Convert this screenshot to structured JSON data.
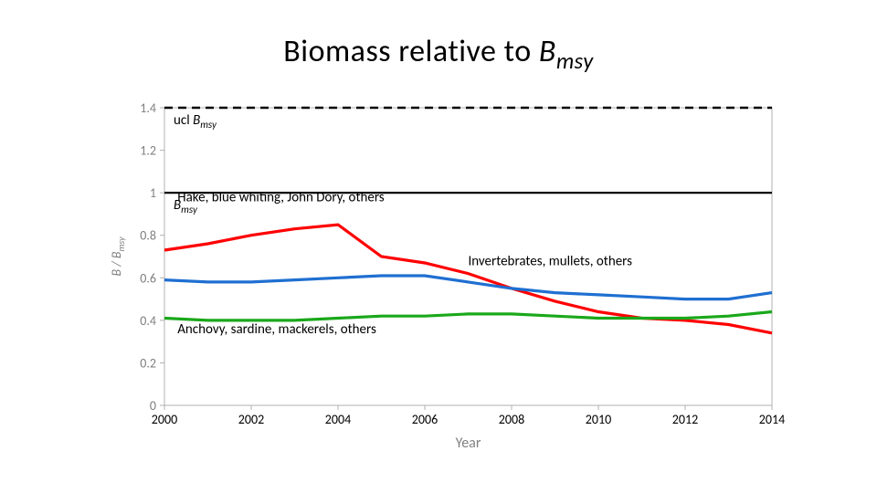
{
  "title": {
    "main": "Biomass relative to ",
    "italic": "B",
    "sub": "msy",
    "fontsize": 34,
    "color": "#000000"
  },
  "chart": {
    "type": "line",
    "background_color": "#ffffff",
    "axis_color": "#b0b0b0",
    "x": {
      "label": "Year",
      "label_color": "#808080",
      "label_fontsize": 16,
      "lim": [
        2000,
        2014
      ],
      "ticks": [
        2000,
        2002,
        2004,
        2006,
        2008,
        2010,
        2012,
        2014
      ],
      "tick_color": "#000000",
      "tick_fontsize": 14
    },
    "y": {
      "label": "B / B_msy",
      "label_color": "#808080",
      "label_fontsize": 14,
      "lim": [
        0,
        1.4
      ],
      "ticks": [
        0,
        0.2,
        0.4,
        0.6,
        0.8,
        1,
        1.2,
        1.4
      ],
      "tick_color": "#808080",
      "tick_fontsize": 14
    },
    "reference_lines": [
      {
        "y": 1.4,
        "style": "dashed",
        "color": "#000000",
        "width": 2.6,
        "dash": "9 6",
        "label_prefix": "ucl ",
        "label_italic": "B",
        "label_sub": "msy"
      },
      {
        "y": 1.0,
        "style": "solid",
        "color": "#000000",
        "width": 2.2,
        "label_prefix": "",
        "label_italic": "B",
        "label_sub": "msy"
      }
    ],
    "series": [
      {
        "name": "Hake, blue whiting, John Dory, others",
        "color": "#ff0000",
        "width": 3.2,
        "label_xy": [
          2000.3,
          0.96
        ],
        "x": [
          2000,
          2001,
          2002,
          2003,
          2004,
          2005,
          2006,
          2007,
          2008,
          2009,
          2010,
          2011,
          2012,
          2013,
          2014
        ],
        "y": [
          0.73,
          0.76,
          0.8,
          0.83,
          0.85,
          0.7,
          0.67,
          0.62,
          0.55,
          0.49,
          0.44,
          0.41,
          0.4,
          0.38,
          0.34
        ]
      },
      {
        "name": "Invertebrates, mullets, others",
        "color": "#1f6fd1",
        "width": 3.2,
        "label_xy": [
          2007.0,
          0.66
        ],
        "x": [
          2000,
          2001,
          2002,
          2003,
          2004,
          2005,
          2006,
          2007,
          2008,
          2009,
          2010,
          2011,
          2012,
          2013,
          2014
        ],
        "y": [
          0.59,
          0.58,
          0.58,
          0.59,
          0.6,
          0.61,
          0.61,
          0.58,
          0.55,
          0.53,
          0.52,
          0.51,
          0.5,
          0.5,
          0.53
        ]
      },
      {
        "name": "Anchovy, sardine, mackerels, others",
        "color": "#1aa81a",
        "width": 3.2,
        "label_xy": [
          2000.3,
          0.34
        ],
        "x": [
          2000,
          2001,
          2002,
          2003,
          2004,
          2005,
          2006,
          2007,
          2008,
          2009,
          2010,
          2011,
          2012,
          2013,
          2014
        ],
        "y": [
          0.41,
          0.4,
          0.4,
          0.4,
          0.41,
          0.42,
          0.42,
          0.43,
          0.43,
          0.42,
          0.41,
          0.41,
          0.41,
          0.42,
          0.44
        ]
      }
    ]
  }
}
